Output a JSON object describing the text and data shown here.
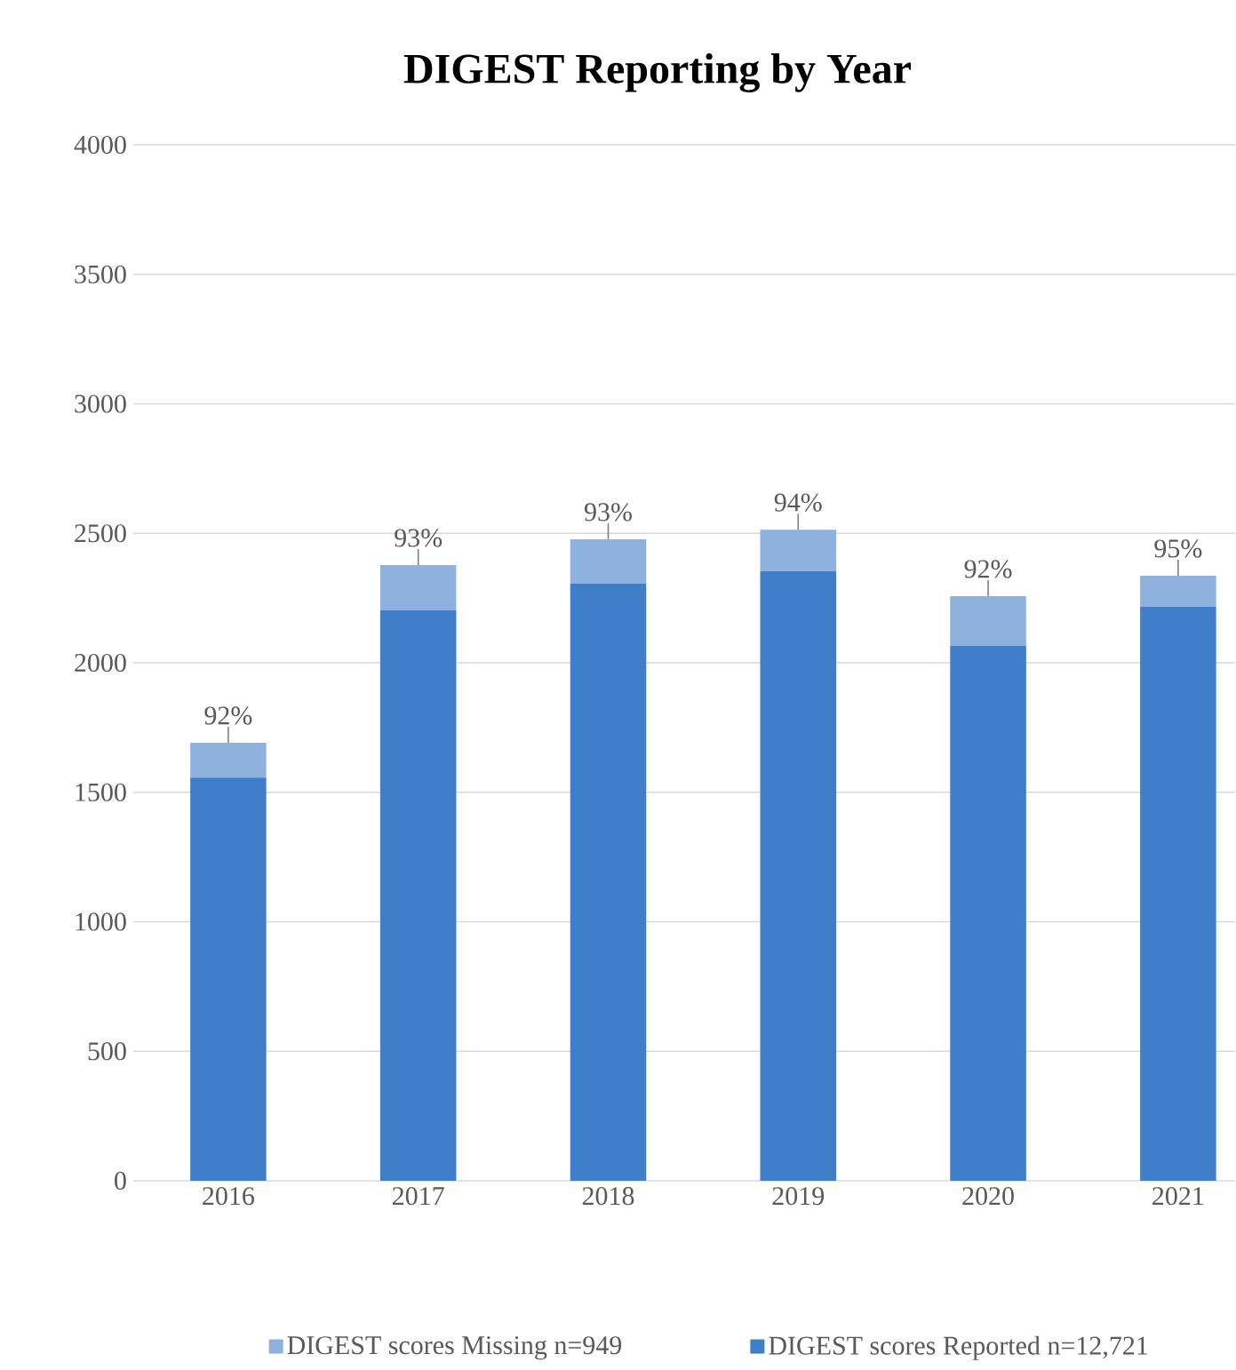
{
  "chart_data": {
    "type": "bar",
    "title": "DIGEST Reporting by Year",
    "stacked": true,
    "categories": [
      "2016",
      "2017",
      "2018",
      "2019",
      "2020",
      "2021"
    ],
    "series": [
      {
        "name": "DIGEST scores Reported n=12,721",
        "color": "#3f7ec9",
        "values": [
          1557,
          2202,
          2305,
          2353,
          2065,
          2216
        ]
      },
      {
        "name": "DIGEST scores Missing n=949",
        "color": "#8eb1de",
        "values": [
          134,
          175,
          172,
          161,
          192,
          120
        ]
      }
    ],
    "annotations": [
      {
        "text": "92%",
        "x": "2016",
        "y": 1691
      },
      {
        "text": "93%",
        "x": "2017",
        "y": 2377
      },
      {
        "text": "93%",
        "x": "2018",
        "y": 2477
      },
      {
        "text": "94%",
        "x": "2019",
        "y": 2514
      },
      {
        "text": "92%",
        "x": "2020",
        "y": 2257
      },
      {
        "text": "95%",
        "x": "2021",
        "y": 2336
      }
    ],
    "ylim": [
      0,
      4000
    ],
    "yticks": [
      0,
      500,
      1000,
      1500,
      2000,
      2500,
      3000,
      3500,
      4000
    ],
    "grid": "y",
    "legend": "bottom"
  }
}
